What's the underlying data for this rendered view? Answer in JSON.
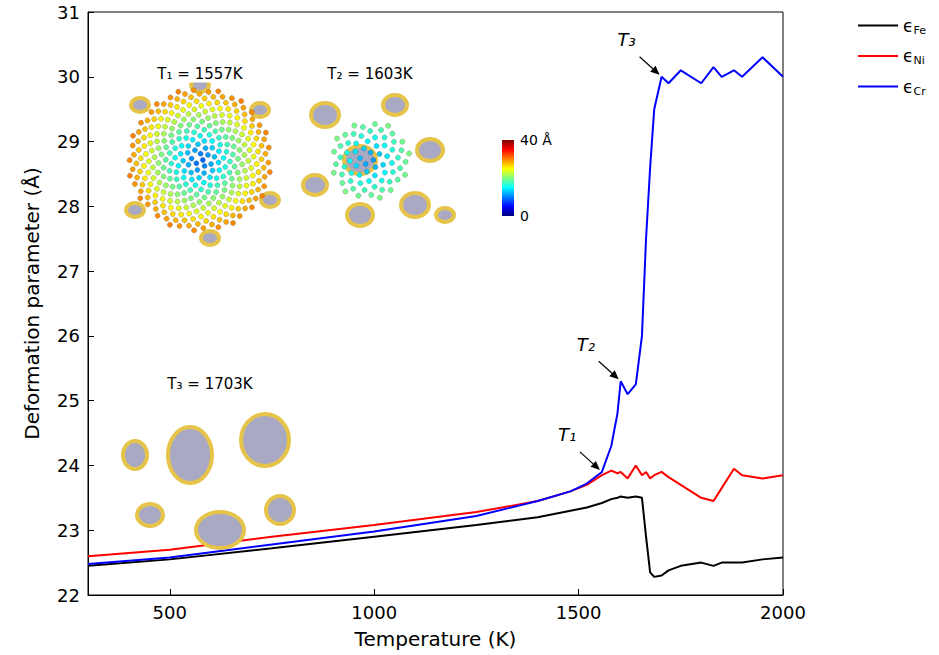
{
  "chart_data": {
    "type": "line",
    "xlabel": "Temperature (K)",
    "ylabel": "Deformation parameter (Å)",
    "xlim": [
      300,
      2000
    ],
    "xticks": [
      500,
      1000,
      1500,
      2000
    ],
    "ylim": [
      22,
      31
    ],
    "yticks": [
      22,
      23,
      24,
      25,
      26,
      27,
      28,
      29,
      30,
      31
    ],
    "legend": "right",
    "x": [
      300,
      500,
      750,
      1000,
      1250,
      1400,
      1480,
      1520,
      1557,
      1580,
      1595,
      1603,
      1620,
      1640,
      1655,
      1665,
      1675,
      1685,
      1703,
      1720,
      1750,
      1800,
      1830,
      1850,
      1880,
      1900,
      1950,
      2000
    ],
    "series": [
      {
        "name": "ϵFe",
        "color": "#000000",
        "values": [
          22.45,
          22.55,
          22.72,
          22.9,
          23.08,
          23.2,
          23.3,
          23.35,
          23.42,
          23.48,
          23.5,
          23.52,
          23.5,
          23.52,
          23.5,
          22.9,
          22.35,
          22.28,
          22.3,
          22.38,
          22.45,
          22.5,
          22.45,
          22.5,
          22.5,
          22.5,
          22.55,
          22.58
        ]
      },
      {
        "name": "ϵNi",
        "color": "#ff0000",
        "values": [
          22.6,
          22.7,
          22.9,
          23.08,
          23.28,
          23.45,
          23.6,
          23.7,
          23.85,
          23.92,
          23.88,
          23.9,
          23.8,
          24.0,
          23.85,
          23.9,
          23.8,
          23.85,
          23.9,
          23.82,
          23.7,
          23.5,
          23.45,
          23.65,
          23.95,
          23.85,
          23.8,
          23.85
        ]
      },
      {
        "name": "ϵCr",
        "color": "#0000ff",
        "values": [
          22.48,
          22.58,
          22.78,
          22.98,
          23.22,
          23.45,
          23.6,
          23.72,
          23.9,
          24.3,
          24.8,
          25.3,
          25.1,
          25.25,
          26.0,
          27.5,
          28.6,
          29.5,
          30.0,
          29.9,
          30.1,
          29.9,
          30.15,
          30.0,
          30.1,
          30.0,
          30.3,
          30.0
        ]
      }
    ],
    "annotations": [
      {
        "text": "T₁",
        "x": 1557,
        "y": 23.9
      },
      {
        "text": "T₂",
        "x": 1603,
        "y": 25.3
      },
      {
        "text": "T₃",
        "x": 1703,
        "y": 30.0
      }
    ],
    "insets": [
      {
        "title": "T₁ = 1557K"
      },
      {
        "title": "T₂ = 1603K"
      },
      {
        "title": "T₃ = 1703K"
      }
    ],
    "colorbar": {
      "range": [
        0,
        40
      ],
      "ticks": [
        0,
        {
          "value": 40,
          "label": "40 Å"
        }
      ]
    }
  }
}
